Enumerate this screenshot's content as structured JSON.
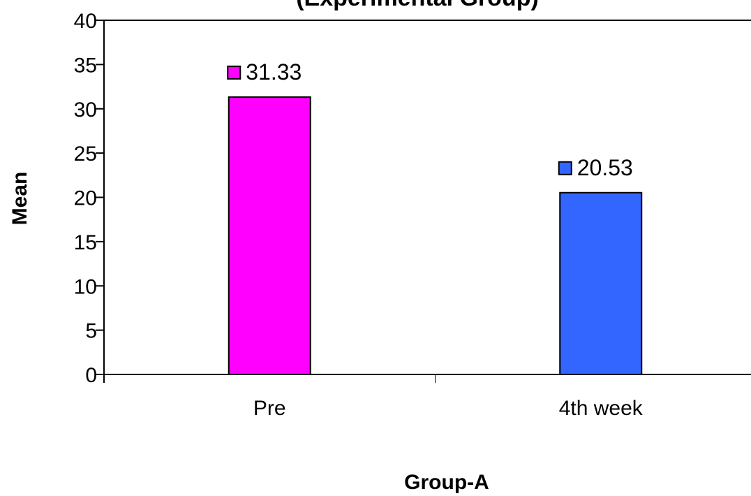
{
  "chart_data": {
    "type": "bar",
    "title": "(Experimental Group)",
    "xlabel": "Group-A",
    "ylabel": "Mean",
    "categories": [
      "Pre",
      "4th week"
    ],
    "values": [
      31.33,
      20.53
    ],
    "data_labels": [
      "31.33",
      "20.53"
    ],
    "colors": [
      "#ff00ff",
      "#3366ff"
    ],
    "ylim": [
      0,
      40
    ],
    "yticks": [
      0,
      5,
      10,
      15,
      20,
      25,
      30,
      35,
      40
    ],
    "grid": false,
    "legend": "none"
  }
}
